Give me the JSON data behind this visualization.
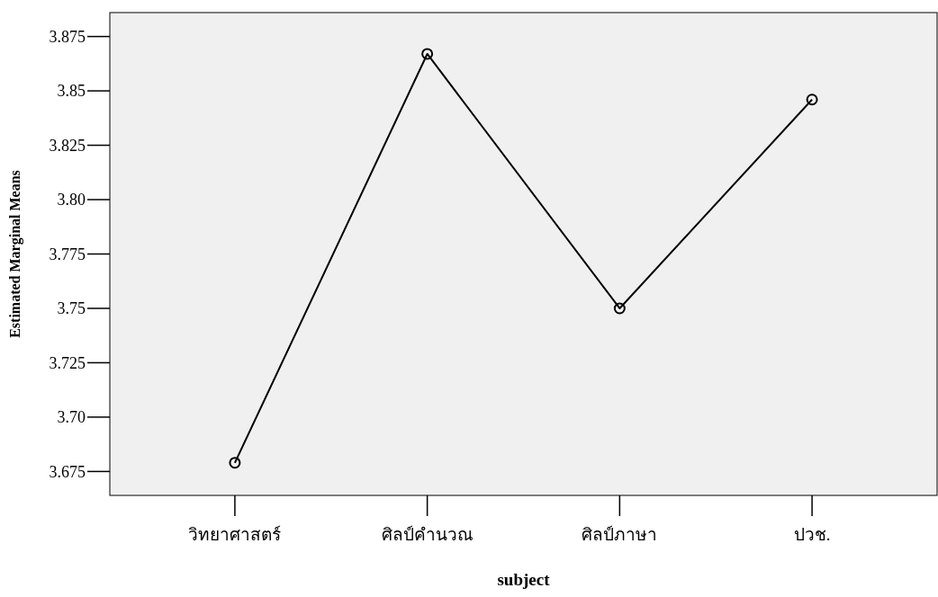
{
  "chart_data": {
    "type": "line",
    "xlabel": "subject",
    "ylabel": "Estimated Marginal Means",
    "categories": [
      "วิทยาศาสตร์",
      "ศิลป์คำนวณ",
      "ศิลป์ภาษา",
      "ปวช."
    ],
    "series": [
      {
        "color": "#000000",
        "values": [
          3.679,
          3.867,
          3.75,
          3.846
        ]
      }
    ],
    "marker": "circle",
    "line_style": "solid",
    "ylim": [
      3.664,
      3.886
    ],
    "yticks": [
      3.675,
      {
        "value": 3.7,
        "label": "3.70"
      },
      3.725,
      {
        "value": 3.75,
        "label": "3.75"
      },
      3.775,
      {
        "value": 3.8,
        "label": "3.80"
      },
      3.825,
      {
        "value": 3.85,
        "label": "3.85"
      },
      3.875
    ]
  }
}
